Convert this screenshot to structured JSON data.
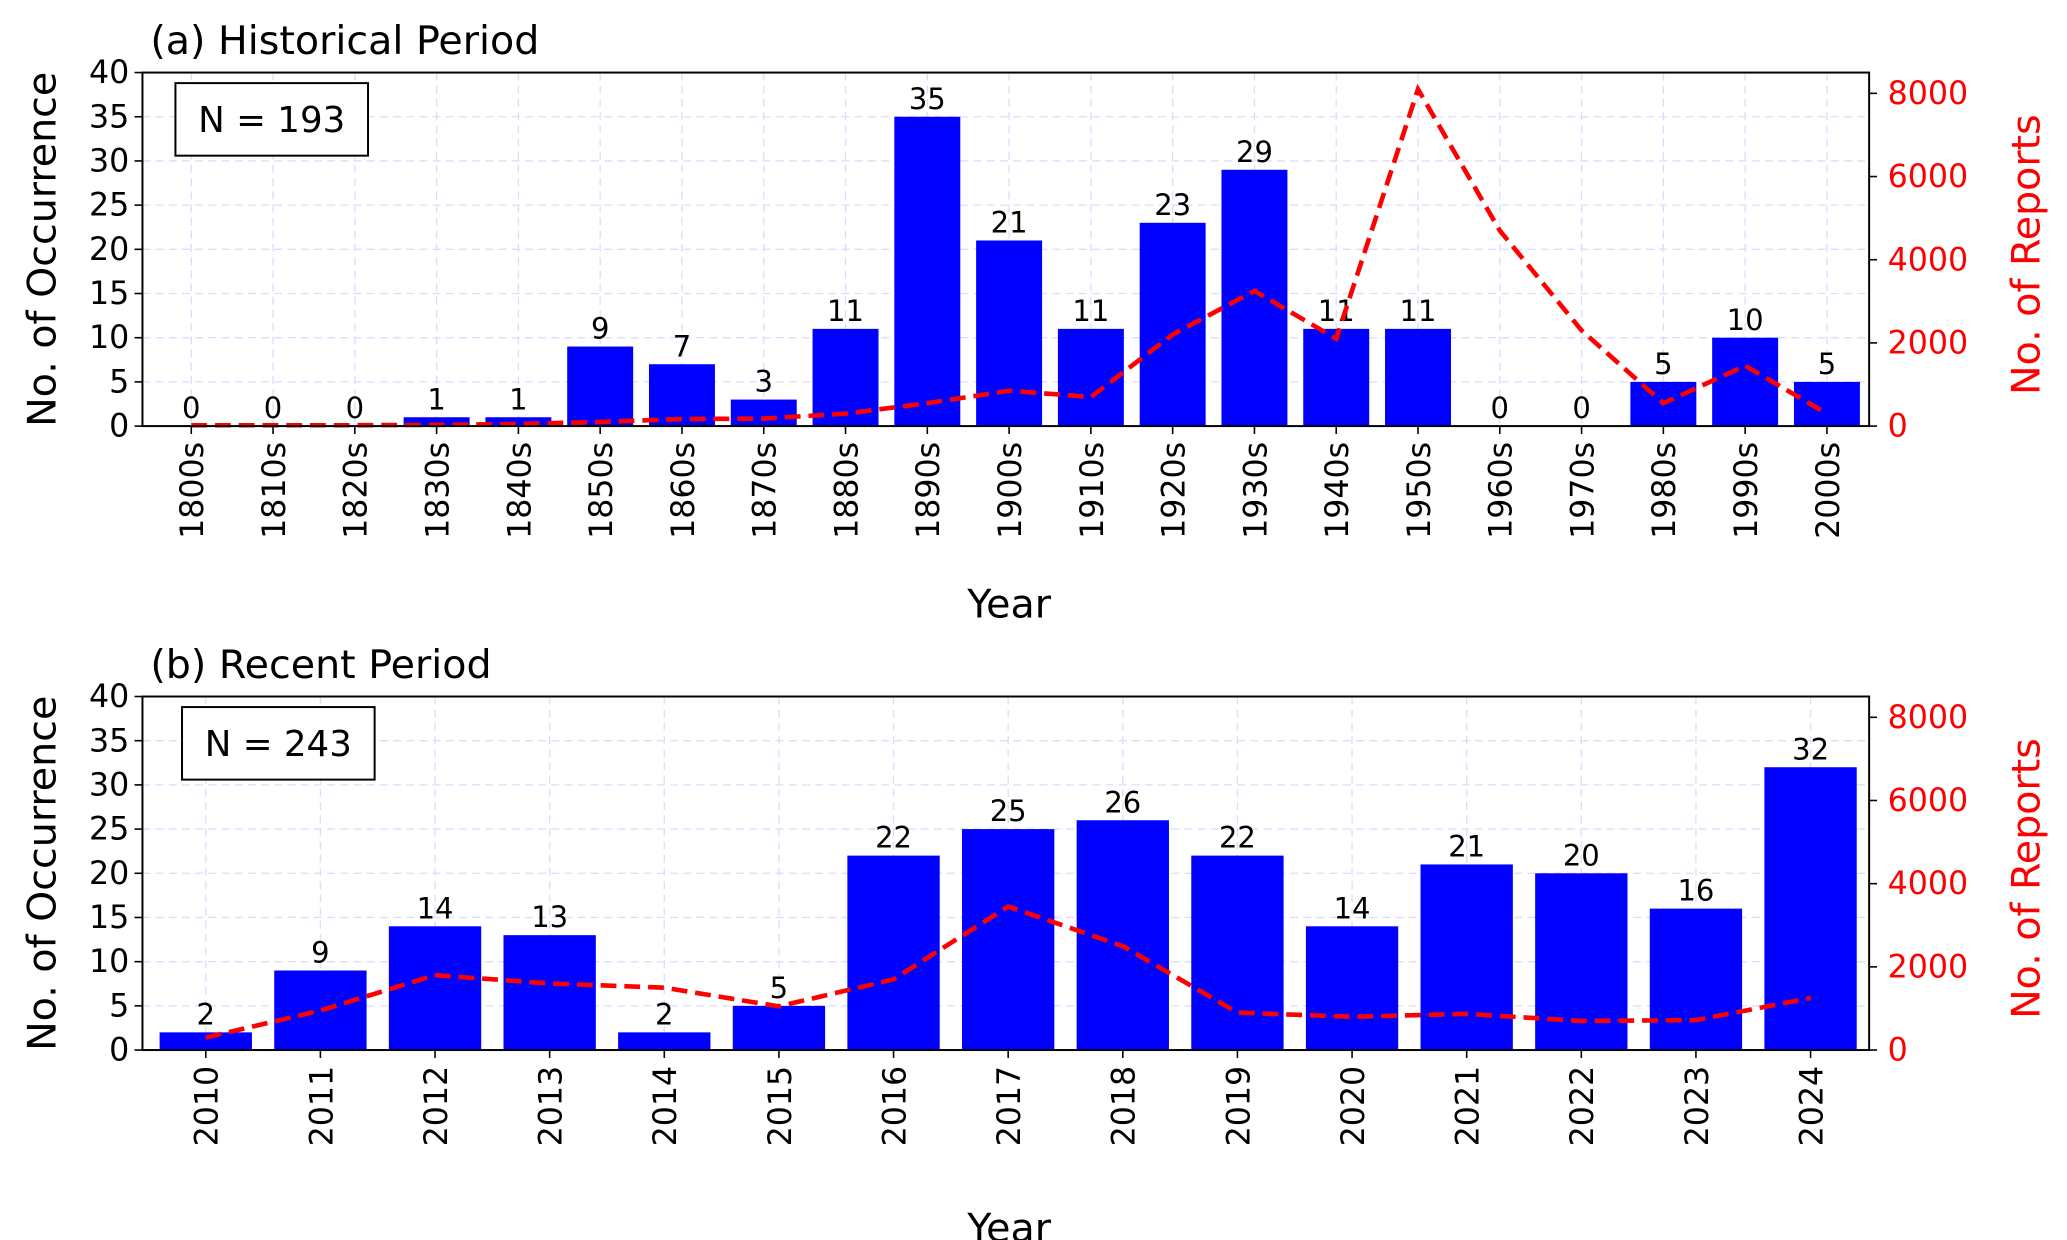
{
  "chart_data": [
    {
      "type": "bar",
      "title": "(a) Historical Period",
      "annotation": "N = 193",
      "xlabel": "Year",
      "ylabel": "No. of Occurrence",
      "ylabel_right": "No. of Reports",
      "ylim": [
        0,
        40
      ],
      "ylim_right": [
        0,
        8500
      ],
      "yticks": [
        0,
        5,
        10,
        15,
        20,
        25,
        30,
        35,
        40
      ],
      "yticks_right": [
        0,
        2000,
        4000,
        6000,
        8000
      ],
      "grid": true,
      "categories": [
        "1800s",
        "1810s",
        "1820s",
        "1830s",
        "1840s",
        "1850s",
        "1860s",
        "1870s",
        "1880s",
        "1890s",
        "1900s",
        "1910s",
        "1920s",
        "1930s",
        "1940s",
        "1950s",
        "1960s",
        "1970s",
        "1980s",
        "1990s",
        "2000s"
      ],
      "series": [
        {
          "name": "No. of Occurrence",
          "type": "bar",
          "color": "#0000ff",
          "values": [
            0,
            0,
            0,
            1,
            1,
            9,
            7,
            3,
            11,
            35,
            21,
            11,
            23,
            29,
            11,
            11,
            0,
            0,
            5,
            10,
            5
          ]
        },
        {
          "name": "No. of Reports",
          "type": "line",
          "style": "dashed",
          "color": "#ff0000",
          "axis": "right",
          "values": [
            20,
            20,
            20,
            30,
            50,
            100,
            170,
            180,
            300,
            550,
            850,
            700,
            2200,
            3250,
            2100,
            8100,
            4700,
            2300,
            550,
            1450,
            300
          ]
        }
      ]
    },
    {
      "type": "bar",
      "title": "(b) Recent Period",
      "annotation": "N = 243",
      "xlabel": "Year",
      "ylabel": "No. of Occurrence",
      "ylabel_right": "No. of Reports",
      "ylim": [
        0,
        40
      ],
      "ylim_right": [
        0,
        8500
      ],
      "yticks": [
        0,
        5,
        10,
        15,
        20,
        25,
        30,
        35,
        40
      ],
      "yticks_right": [
        0,
        2000,
        4000,
        6000,
        8000
      ],
      "grid": true,
      "categories": [
        "2010",
        "2011",
        "2012",
        "2013",
        "2014",
        "2015",
        "2016",
        "2017",
        "2018",
        "2019",
        "2020",
        "2021",
        "2022",
        "2023",
        "2024"
      ],
      "series": [
        {
          "name": "No. of Occurrence",
          "type": "bar",
          "color": "#0000ff",
          "values": [
            2,
            9,
            14,
            13,
            2,
            5,
            22,
            25,
            26,
            22,
            14,
            21,
            20,
            16,
            32
          ]
        },
        {
          "name": "No. of Reports",
          "type": "line",
          "style": "dashed",
          "color": "#ff0000",
          "axis": "right",
          "values": [
            300,
            950,
            1800,
            1600,
            1500,
            1050,
            1700,
            3450,
            2500,
            900,
            800,
            870,
            700,
            720,
            1250
          ]
        }
      ]
    }
  ]
}
